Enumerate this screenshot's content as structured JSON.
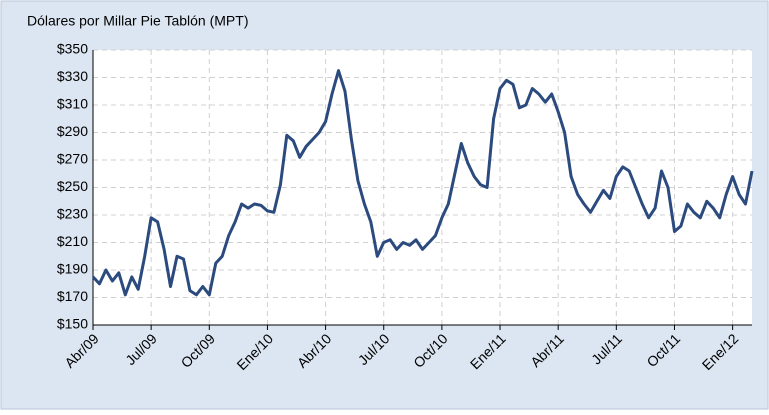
{
  "chart_data": {
    "type": "line",
    "title": "Dólares por Millar Pie Tablón (MPT)",
    "categories": [
      "Abr/09",
      null,
      null,
      null,
      null,
      null,
      null,
      null,
      null,
      "Jul/09",
      null,
      null,
      null,
      null,
      null,
      null,
      null,
      null,
      "Oct/09",
      null,
      null,
      null,
      null,
      null,
      null,
      null,
      null,
      "Ene/10",
      null,
      null,
      null,
      null,
      null,
      null,
      null,
      null,
      "Abr/10",
      null,
      null,
      null,
      null,
      null,
      null,
      null,
      null,
      "Jul/10",
      null,
      null,
      null,
      null,
      null,
      null,
      null,
      null,
      "Oct/10",
      null,
      null,
      null,
      null,
      null,
      null,
      null,
      null,
      "Ene/11",
      null,
      null,
      null,
      null,
      null,
      null,
      null,
      null,
      "Abr/11",
      null,
      null,
      null,
      null,
      null,
      null,
      null,
      null,
      "Jul/11",
      null,
      null,
      null,
      null,
      null,
      null,
      null,
      null,
      "Oct/11",
      null,
      null,
      null,
      null,
      null,
      null,
      null,
      null,
      "Ene/12",
      null,
      null,
      null
    ],
    "series": [
      {
        "color": "#2b4a7e",
        "values": [
          185,
          180,
          190,
          182,
          188,
          172,
          185,
          176,
          200,
          228,
          225,
          205,
          178,
          200,
          198,
          175,
          172,
          178,
          172,
          195,
          200,
          215,
          225,
          238,
          235,
          238,
          237,
          233,
          232,
          252,
          288,
          284,
          272,
          280,
          285,
          290,
          298,
          318,
          335,
          320,
          285,
          255,
          238,
          225,
          200,
          210,
          212,
          205,
          210,
          208,
          212,
          205,
          210,
          215,
          228,
          238,
          260,
          282,
          268,
          258,
          252,
          250,
          300,
          322,
          328,
          325,
          308,
          310,
          322,
          318,
          312,
          318,
          305,
          290,
          258,
          245,
          238,
          232,
          240,
          248,
          242,
          258,
          265,
          262,
          250,
          238,
          228,
          235,
          262,
          250,
          218,
          222,
          238,
          232,
          228,
          240,
          235,
          228,
          245,
          258,
          245,
          238,
          262
        ]
      }
    ],
    "ylim": [
      150,
      350
    ],
    "yticks": [
      {
        "value": 150,
        "label": "$150"
      },
      {
        "value": 170,
        "label": "$170"
      },
      {
        "value": 190,
        "label": "$190"
      },
      {
        "value": 210,
        "label": "$210"
      },
      {
        "value": 230,
        "label": "$230"
      },
      {
        "value": 250,
        "label": "$250"
      },
      {
        "value": 270,
        "label": "$270"
      },
      {
        "value": 290,
        "label": "$290"
      },
      {
        "value": 310,
        "label": "$310"
      },
      {
        "value": 330,
        "label": "$330"
      },
      {
        "value": 350,
        "label": "$350"
      }
    ],
    "grid": true
  }
}
